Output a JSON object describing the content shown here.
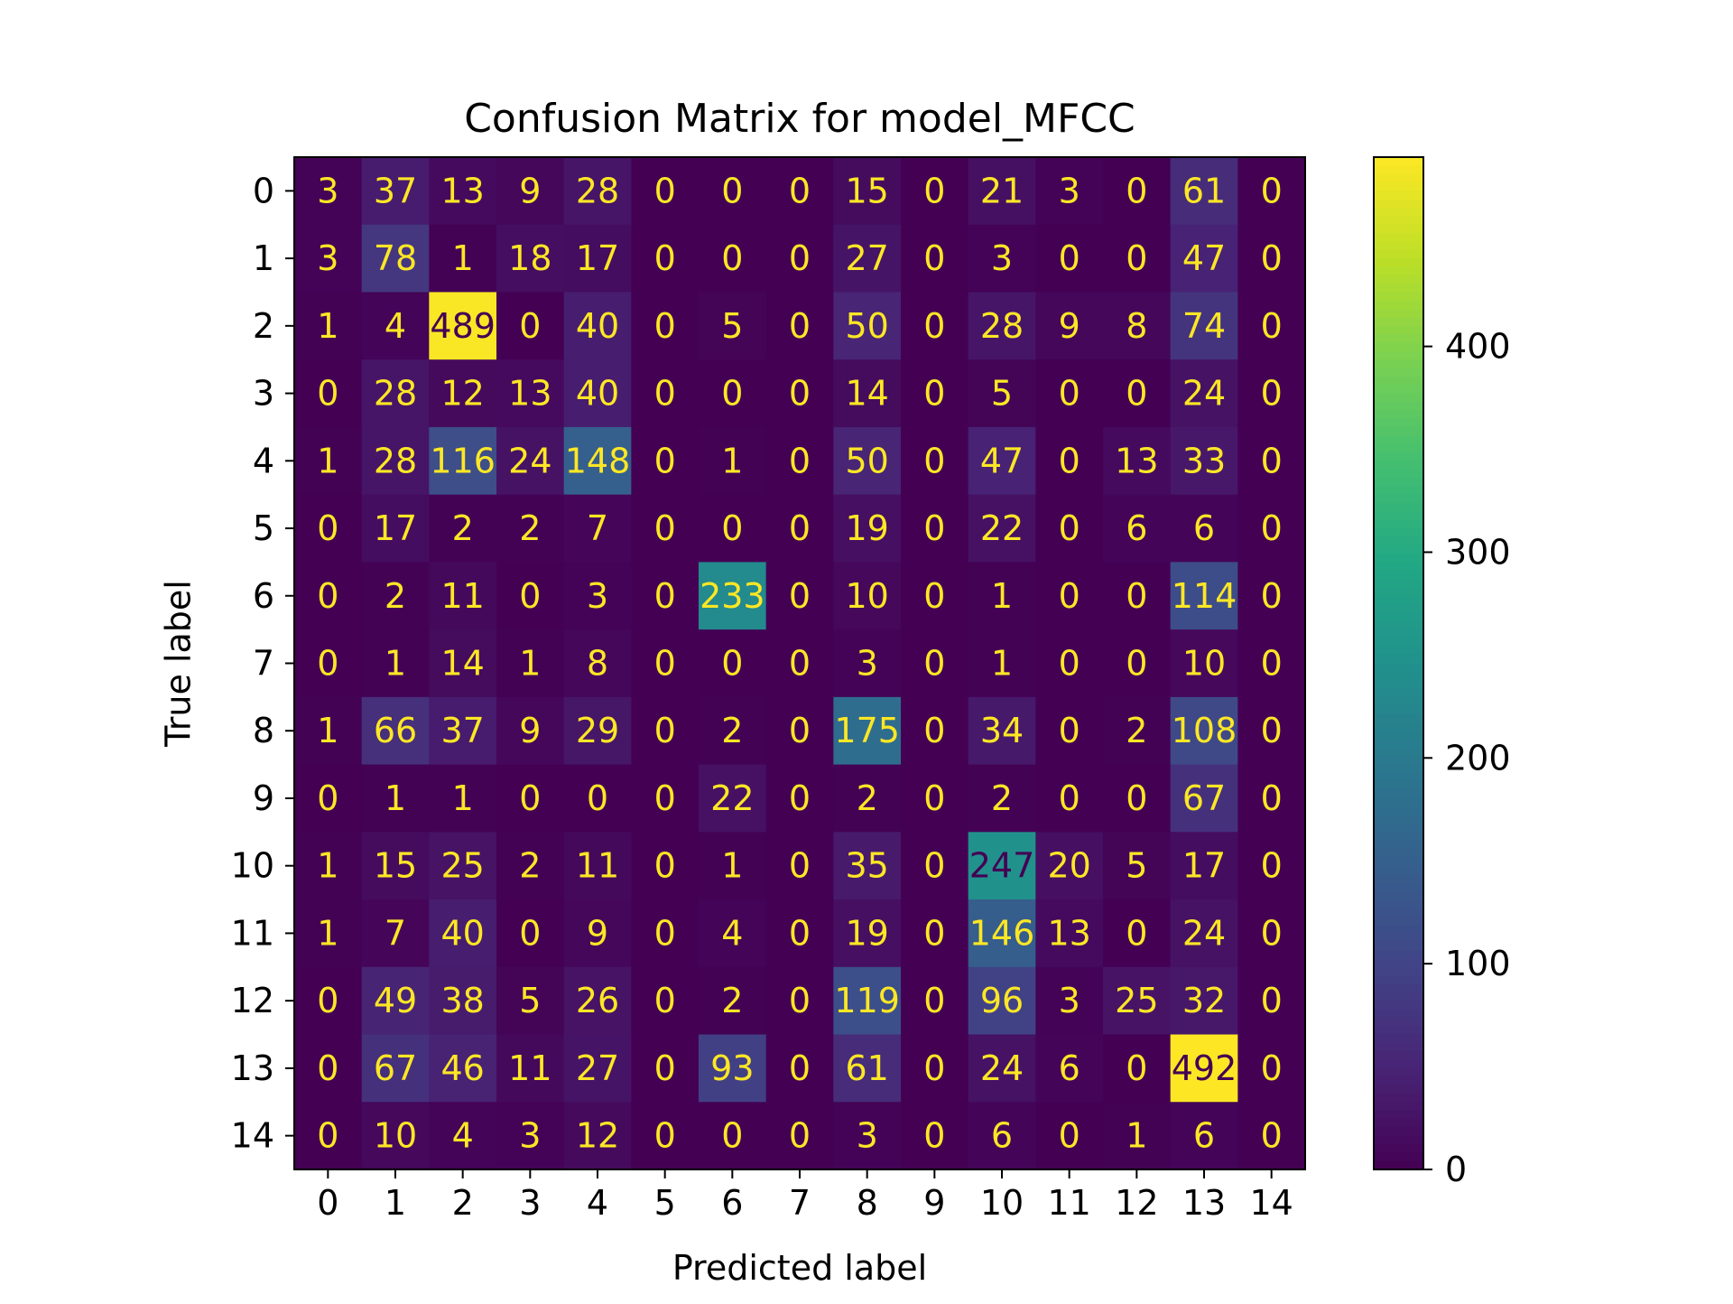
{
  "chart_data": {
    "type": "heatmap",
    "title": "Confusion Matrix for model_MFCC",
    "xlabel": "Predicted label",
    "ylabel": "True label",
    "x_categories": [
      "0",
      "1",
      "2",
      "3",
      "4",
      "5",
      "6",
      "7",
      "8",
      "9",
      "10",
      "11",
      "12",
      "13",
      "14"
    ],
    "y_categories": [
      "0",
      "1",
      "2",
      "3",
      "4",
      "5",
      "6",
      "7",
      "8",
      "9",
      "10",
      "11",
      "12",
      "13",
      "14"
    ],
    "matrix": [
      [
        3,
        37,
        13,
        9,
        28,
        0,
        0,
        0,
        15,
        0,
        21,
        3,
        0,
        61,
        0
      ],
      [
        3,
        78,
        1,
        18,
        17,
        0,
        0,
        0,
        27,
        0,
        3,
        0,
        0,
        47,
        0
      ],
      [
        1,
        4,
        489,
        0,
        40,
        0,
        5,
        0,
        50,
        0,
        28,
        9,
        8,
        74,
        0
      ],
      [
        0,
        28,
        12,
        13,
        40,
        0,
        0,
        0,
        14,
        0,
        5,
        0,
        0,
        24,
        0
      ],
      [
        1,
        28,
        116,
        24,
        148,
        0,
        1,
        0,
        50,
        0,
        47,
        0,
        13,
        33,
        0
      ],
      [
        0,
        17,
        2,
        2,
        7,
        0,
        0,
        0,
        19,
        0,
        22,
        0,
        6,
        6,
        0
      ],
      [
        0,
        2,
        11,
        0,
        3,
        0,
        233,
        0,
        10,
        0,
        1,
        0,
        0,
        114,
        0
      ],
      [
        0,
        1,
        14,
        1,
        8,
        0,
        0,
        0,
        3,
        0,
        1,
        0,
        0,
        10,
        0
      ],
      [
        1,
        66,
        37,
        9,
        29,
        0,
        2,
        0,
        175,
        0,
        34,
        0,
        2,
        108,
        0
      ],
      [
        0,
        1,
        1,
        0,
        0,
        0,
        22,
        0,
        2,
        0,
        2,
        0,
        0,
        67,
        0
      ],
      [
        1,
        15,
        25,
        2,
        11,
        0,
        1,
        0,
        35,
        0,
        247,
        20,
        5,
        17,
        0
      ],
      [
        1,
        7,
        40,
        0,
        9,
        0,
        4,
        0,
        19,
        0,
        146,
        13,
        0,
        24,
        0
      ],
      [
        0,
        49,
        38,
        5,
        26,
        0,
        2,
        0,
        119,
        0,
        96,
        3,
        25,
        32,
        0
      ],
      [
        0,
        67,
        46,
        11,
        27,
        0,
        93,
        0,
        61,
        0,
        24,
        6,
        0,
        492,
        0
      ],
      [
        0,
        10,
        4,
        3,
        12,
        0,
        0,
        0,
        3,
        0,
        6,
        0,
        1,
        6,
        0
      ]
    ],
    "colormap": "viridis",
    "colorbar": {
      "range": [
        0,
        492
      ],
      "ticks": [
        0,
        100,
        200,
        300,
        400
      ]
    },
    "text_colors": {
      "light": "#fde725",
      "dark": "#440154"
    }
  }
}
